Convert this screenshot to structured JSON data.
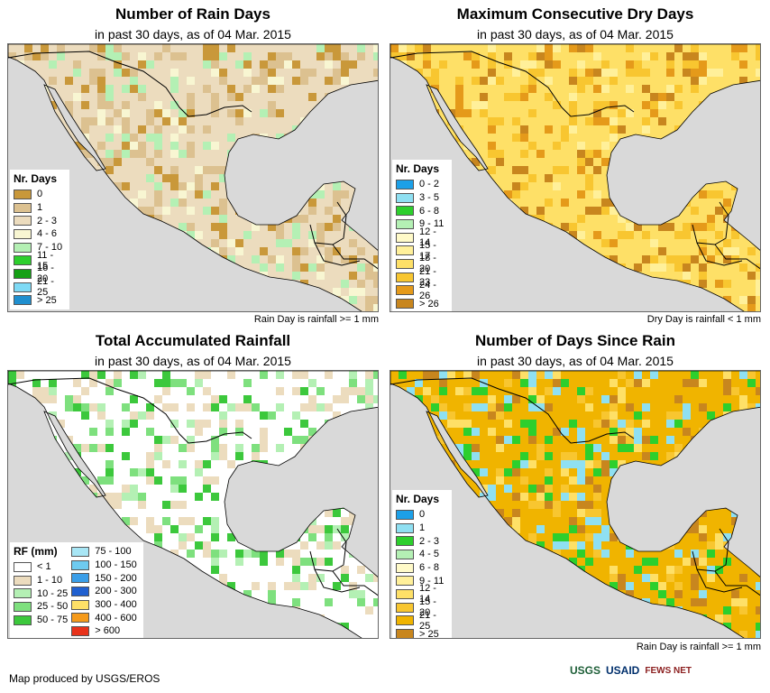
{
  "panels": [
    {
      "title": "Number of Rain Days",
      "subtitle": "in past 30 days, as of 04 Mar. 2015",
      "footnote": "Rain Day is rainfall >= 1 mm",
      "legend": {
        "title": "Nr. Days",
        "items": [
          {
            "label": "0",
            "color": "#c9983a"
          },
          {
            "label": "1",
            "color": "#dcc190"
          },
          {
            "label": "2 - 3",
            "color": "#ecdcbe"
          },
          {
            "label": "4 - 6",
            "color": "#f8f6d2"
          },
          {
            "label": "7 - 10",
            "color": "#b4f0b4"
          },
          {
            "label": "11 - 15",
            "color": "#2dcf2d"
          },
          {
            "label": "16 - 20",
            "color": "#15a015"
          },
          {
            "label": "21 - 25",
            "color": "#7edaf5"
          },
          {
            "label": "> 25",
            "color": "#1f8fcf"
          }
        ]
      }
    },
    {
      "title": "Maximum Consecutive Dry Days",
      "subtitle": "in past 30 days, as of 04 Mar. 2015",
      "footnote": "Dry Day is rainfall < 1 mm",
      "legend": {
        "title": "Nr. Days",
        "items": [
          {
            "label": "0 - 2",
            "color": "#1ca0e8"
          },
          {
            "label": "3 - 5",
            "color": "#8fe0f2"
          },
          {
            "label": "6 - 8",
            "color": "#2dcf2d"
          },
          {
            "label": "9 - 11",
            "color": "#b4f0b4"
          },
          {
            "label": "12 - 14",
            "color": "#fffac8"
          },
          {
            "label": "15 - 17",
            "color": "#fff09a"
          },
          {
            "label": "18 - 20",
            "color": "#fee067"
          },
          {
            "label": "21 - 23",
            "color": "#f8c630"
          },
          {
            "label": "24 - 26",
            "color": "#e59a1a"
          },
          {
            "label": "> 26",
            "color": "#c8861e"
          }
        ]
      }
    },
    {
      "title": "Total Accumulated Rainfall",
      "subtitle": "in past 30 days, as of 04 Mar. 2015",
      "footnote": "",
      "legend": {
        "title": "RF (mm)",
        "items": [
          {
            "label": "< 1",
            "color": "#ffffff"
          },
          {
            "label": "1 - 10",
            "color": "#ecdcbe"
          },
          {
            "label": "10 - 25",
            "color": "#b4f0b4"
          },
          {
            "label": "25 - 50",
            "color": "#7ee07e"
          },
          {
            "label": "50 - 75",
            "color": "#3cc83c"
          }
        ],
        "items2": [
          {
            "label": "75 - 100",
            "color": "#a8e6f5"
          },
          {
            "label": "100 - 150",
            "color": "#6ecbf0"
          },
          {
            "label": "150 - 200",
            "color": "#3a9ee8"
          },
          {
            "label": "200 - 300",
            "color": "#2060d0"
          },
          {
            "label": "300 - 400",
            "color": "#fee067"
          },
          {
            "label": "400 - 600",
            "color": "#f59a1a"
          },
          {
            "label": "> 600",
            "color": "#e8321a"
          }
        ]
      }
    },
    {
      "title": "Number of Days Since Rain",
      "subtitle": "in past 30 days, as of 04 Mar. 2015",
      "footnote": "Rain Day is rainfall >= 1 mm",
      "legend": {
        "title": "Nr. Days",
        "items": [
          {
            "label": "0",
            "color": "#1ca0e8"
          },
          {
            "label": "1",
            "color": "#8fe0f2"
          },
          {
            "label": "2 - 3",
            "color": "#2dcf2d"
          },
          {
            "label": "4 - 5",
            "color": "#b4f0b4"
          },
          {
            "label": "6 - 8",
            "color": "#fffac8"
          },
          {
            "label": "9 - 11",
            "color": "#fff09a"
          },
          {
            "label": "12 - 14",
            "color": "#fee067"
          },
          {
            "label": "15 - 20",
            "color": "#f8c630"
          },
          {
            "label": "21 - 25",
            "color": "#f0b400"
          },
          {
            "label": "> 25",
            "color": "#c8861e"
          }
        ]
      }
    }
  ],
  "credit": "Map produced by USGS/EROS",
  "logos": [
    "USGS",
    "USAID",
    "FEWS NET"
  ],
  "colors": {
    "ocean": "#d9d9d9",
    "border": "#000000"
  }
}
